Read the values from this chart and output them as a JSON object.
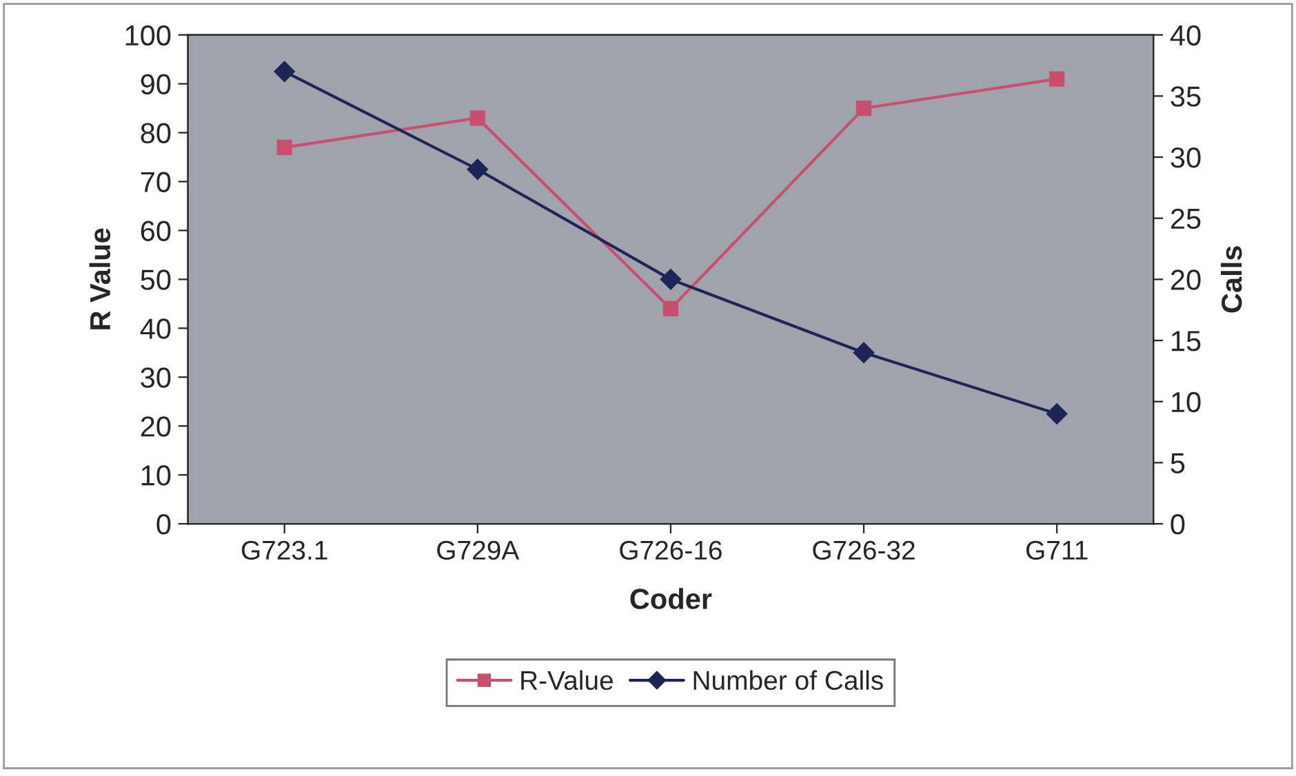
{
  "chart_data": {
    "type": "line",
    "xlabel": "Coder",
    "ylabel": "R Value",
    "y2label": "Calls",
    "categories": [
      "G723.1",
      "G729A",
      "G726-16",
      "G726-32",
      "G711"
    ],
    "series": [
      {
        "name": "R-Value",
        "color": "#c8506e",
        "values": [
          77,
          83,
          44,
          85,
          91
        ],
        "marker": "square"
      },
      {
        "name": "Number of Calls",
        "color": "#1f2456",
        "values": [
          37,
          29,
          20,
          14,
          9
        ],
        "marker": "diamond",
        "axis": "y2"
      }
    ],
    "ylim": [
      0,
      100
    ],
    "yticks": [
      0,
      10,
      20,
      30,
      40,
      50,
      60,
      70,
      80,
      90,
      100
    ],
    "y2lim": [
      0,
      40
    ],
    "y2ticks": [
      0,
      5,
      10,
      15,
      20,
      25,
      30,
      35,
      40
    ],
    "grid": false,
    "legend": "bottom"
  }
}
